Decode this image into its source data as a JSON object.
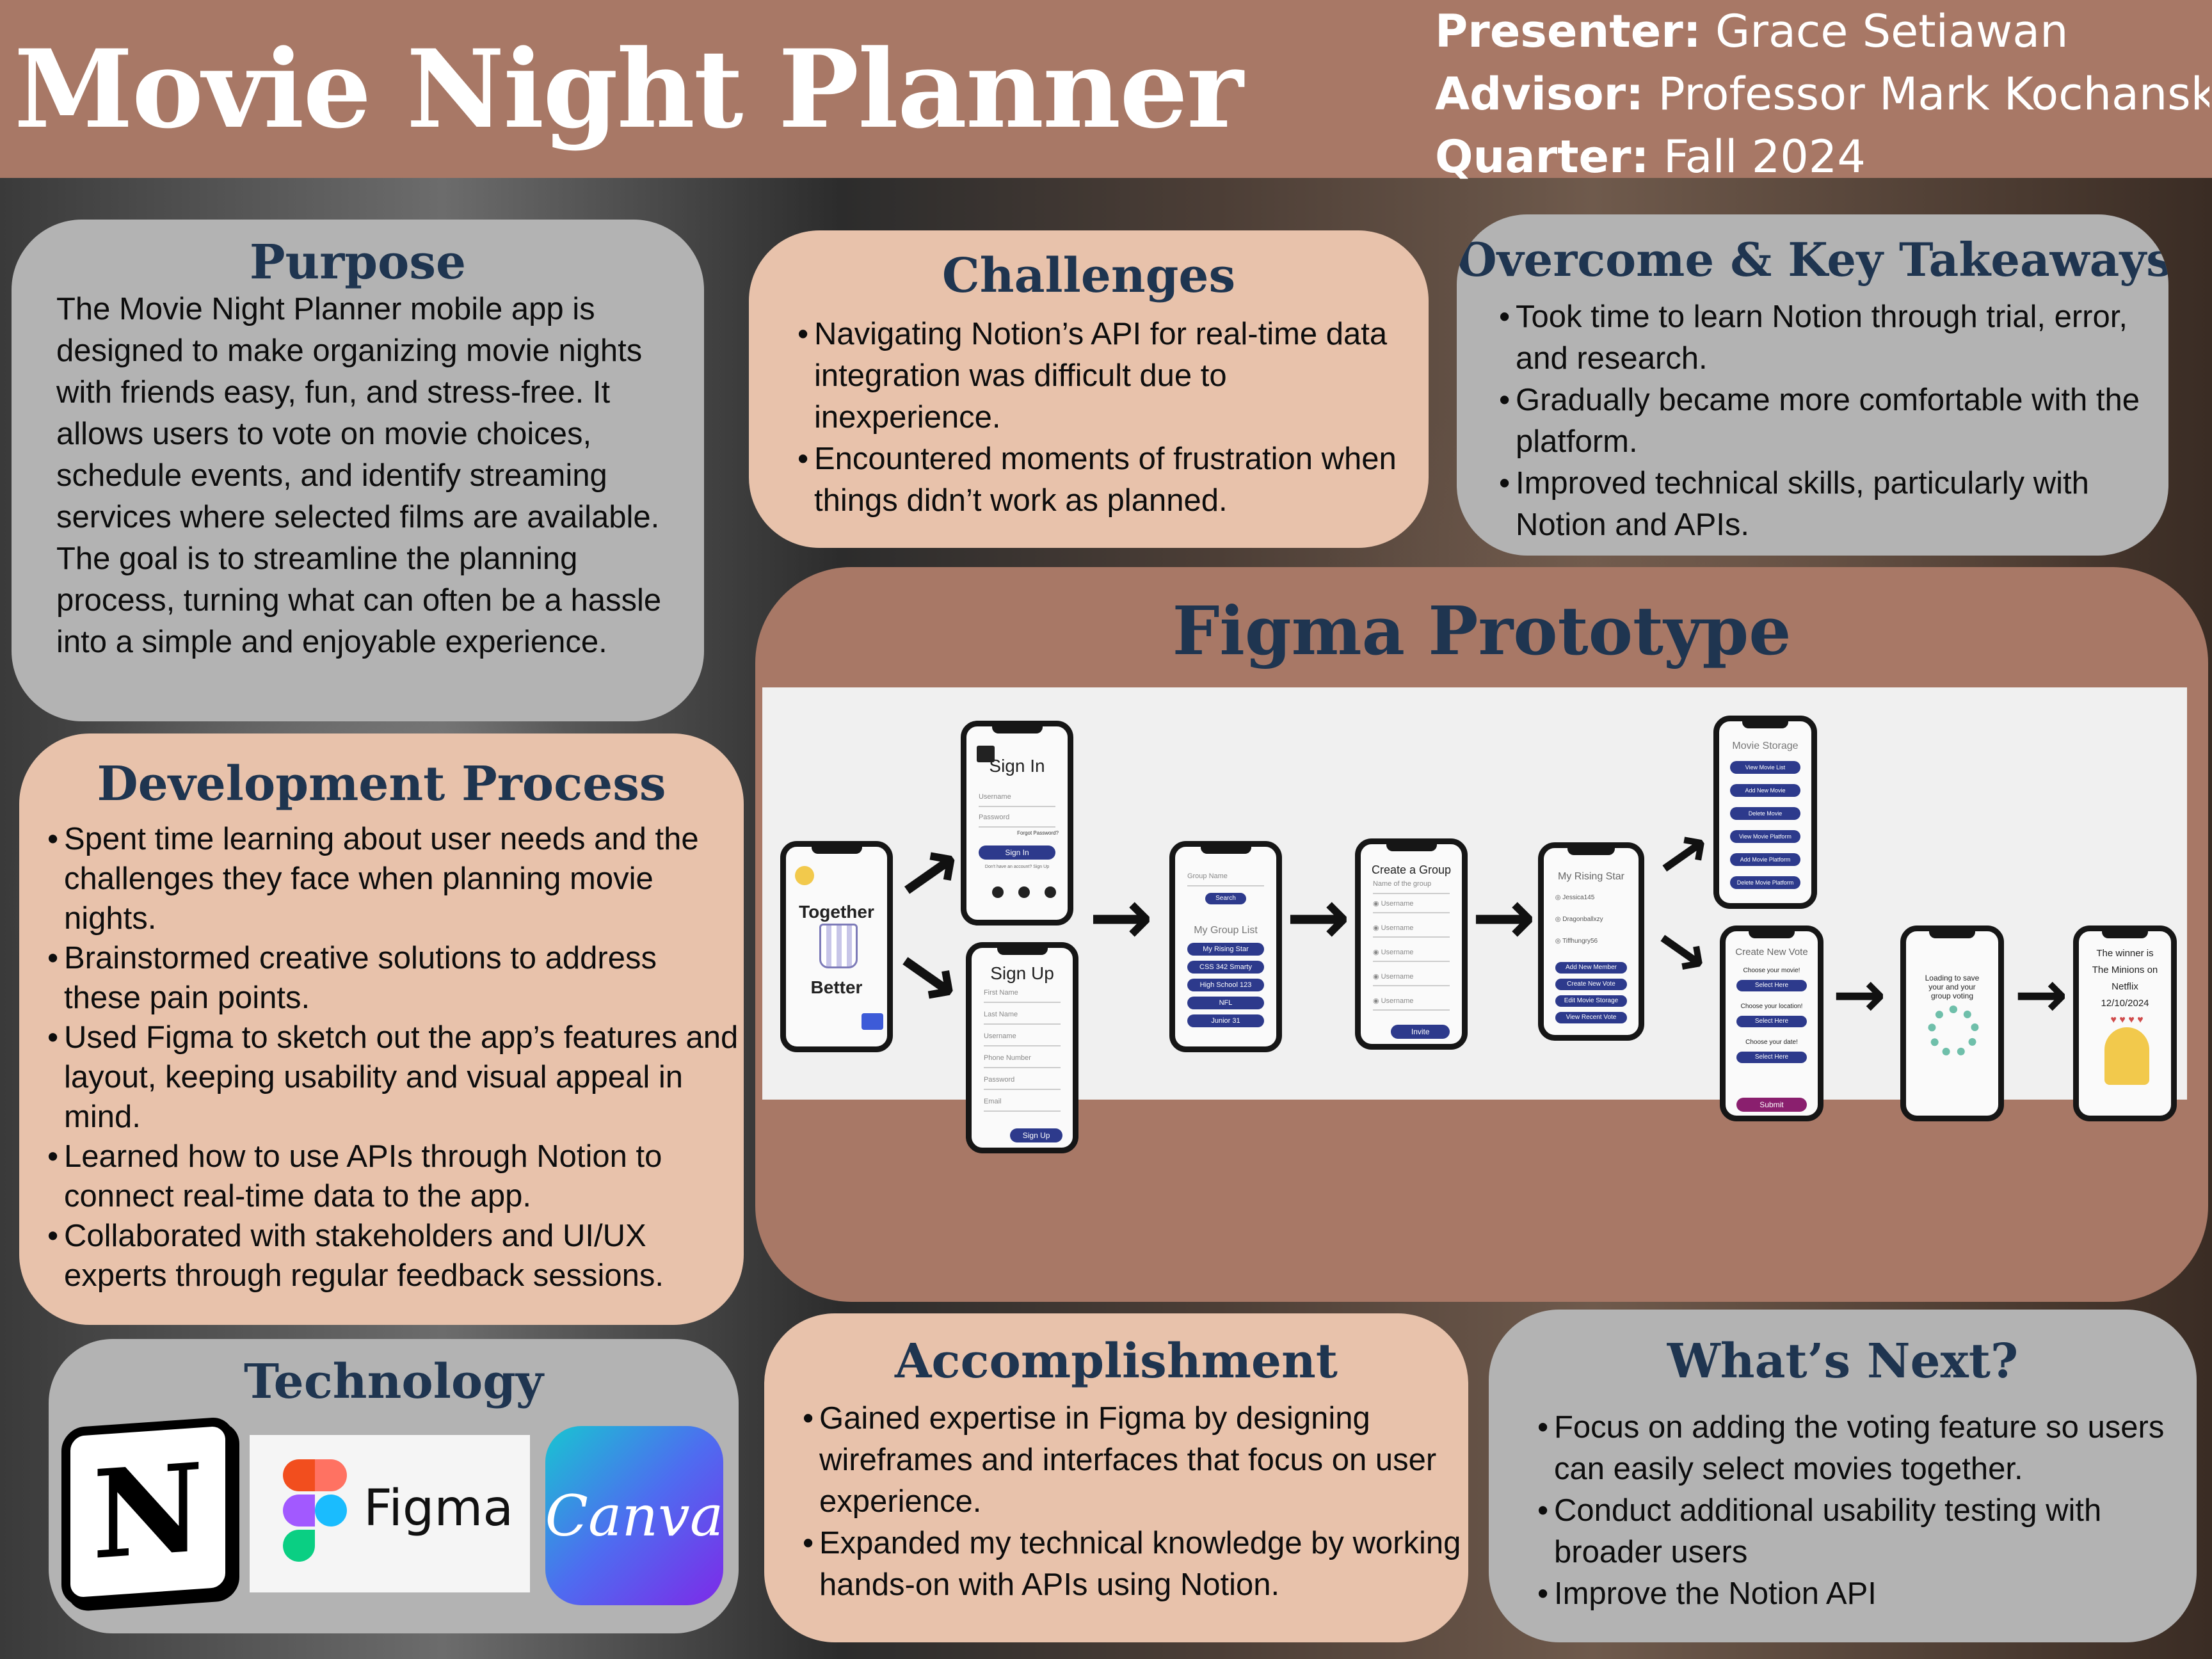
{
  "header": {
    "title": "Movie Night Planner",
    "presenter_label": "Presenter:",
    "presenter": "Grace Setiawan",
    "advisor_label": "Advisor:",
    "advisor": "Professor Mark Kochanski",
    "quarter_label": "Quarter:",
    "quarter": "Fall 2024"
  },
  "purpose": {
    "heading": "Purpose",
    "text": "The Movie Night Planner mobile app is designed to make organizing movie nights with friends easy, fun, and stress-free. It allows users to vote on movie choices, schedule events, and identify streaming services where selected films are available. The goal is to streamline the planning process, turning what can often be a hassle into a simple and enjoyable experience."
  },
  "challenges": {
    "heading": "Challenges",
    "items": [
      "Navigating Notion’s API for real-time data integration was difficult due to inexperience.",
      "Encountered moments of frustration when things didn’t work as planned."
    ]
  },
  "overcome": {
    "heading": "Overcome & Key Takeaways",
    "items": [
      "Took time to learn Notion through trial, error, and research.",
      "Gradually became more comfortable with the platform.",
      "Improved technical skills, particularly with Notion and APIs."
    ]
  },
  "development": {
    "heading": "Development Process",
    "items": [
      "Spent time learning about user needs and the challenges they face when planning movie nights.",
      "Brainstormed creative solutions to address these pain points.",
      "Used Figma to sketch out the app’s features and layout, keeping usability and visual appeal in mind.",
      "Learned how to use APIs through Notion to connect real-time data to the app.",
      "Collaborated with stakeholders and UI/UX experts through regular feedback sessions."
    ]
  },
  "figma": {
    "heading": "Figma Prototype",
    "splash": {
      "top": "Together",
      "bottom": "Better"
    },
    "signin": {
      "title": "Sign In",
      "username": "Username",
      "password": "Password",
      "forgot": "Forgot Password?",
      "button": "Sign In",
      "signup_prompt": "Don't have an account? Sign Up"
    },
    "signup": {
      "title": "Sign Up",
      "fields": [
        "First Name",
        "Last Name",
        "Username",
        "Phone Number",
        "Password",
        "Email"
      ],
      "button": "Sign Up"
    },
    "grouplist": {
      "field": "Group Name",
      "search": "Search",
      "title": "My Group List",
      "items": [
        "My Rising Star",
        "CSS 342 Smarty",
        "High School 123",
        "NFL",
        "Junior 31"
      ]
    },
    "create": {
      "title": "Create a Group",
      "subtitle": "Name of the group",
      "fields": [
        "Username",
        "Username",
        "Username",
        "Username",
        "Username"
      ],
      "button": "Invite"
    },
    "rising": {
      "title": "My Rising Star",
      "members": [
        "Jessica145",
        "Dragonballxzy",
        "Tiffhungry56"
      ],
      "buttons": [
        "Add New Member",
        "Create New Vote",
        "Edit Movie Storage",
        "View Recent Vote"
      ]
    },
    "storage": {
      "title": "Movie Storage",
      "buttons": [
        "View Movie List",
        "Add New Movie",
        "Delete Movie",
        "View Movie Platform",
        "Add Movie Platform",
        "Delete Movie Platform"
      ]
    },
    "vote": {
      "title": "Create New Vote",
      "rows": [
        {
          "label": "Choose your movie!",
          "btn": "Select Here"
        },
        {
          "label": "Choose your location!",
          "btn": "Select Here"
        },
        {
          "label": "Choose your date!",
          "btn": "Select Here"
        }
      ],
      "submit": "Submit"
    },
    "loading": {
      "text": "Loading to save your and your group voting"
    },
    "winner": {
      "line1": "The winner is",
      "line2": "The Minions on",
      "line3": "Netflix",
      "line4": "12/10/2024"
    }
  },
  "technology": {
    "heading": "Technology",
    "notion": "N",
    "figma": "Figma",
    "canva": "Canva"
  },
  "accomplishment": {
    "heading": "Accomplishment",
    "items": [
      "Gained expertise in Figma by designing wireframes and interfaces that focus on user experience.",
      "Expanded my technical knowledge by working hands-on with APIs using Notion."
    ]
  },
  "next": {
    "heading": "What’s Next?",
    "items": [
      "Focus on adding the voting feature so users can easily select movies together.",
      "Conduct  additional usability testing with broader users",
      "Improve the Notion API"
    ]
  },
  "colors": {
    "header": "#a87866",
    "grey_panel": "#b3b3b3",
    "peach_panel": "#e8c2ab",
    "heading_text": "#1f3550",
    "button": "#2d3a8c"
  }
}
